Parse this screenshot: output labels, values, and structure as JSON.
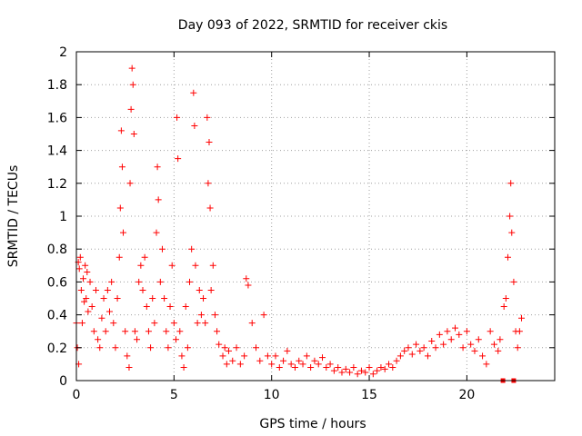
{
  "chart_data": {
    "type": "scatter",
    "title": "Day 093 of 2022, SRMTID for receiver ckis",
    "xlabel": "GPS time / hours",
    "ylabel": "SRMTID / TECUs",
    "xlim": [
      0,
      24.5
    ],
    "ylim": [
      0,
      2
    ],
    "xticks": [
      0,
      5,
      10,
      15,
      20
    ],
    "xtick_labels": [
      "0",
      "5",
      "10",
      "15",
      "20"
    ],
    "yticks": [
      0,
      0.2,
      0.4,
      0.6,
      0.8,
      1,
      1.2,
      1.4,
      1.6,
      1.8,
      2
    ],
    "ytick_labels": [
      "0",
      "0.2",
      "0.4",
      "0.6",
      "0.8",
      "1",
      "1.2",
      "1.4",
      "1.6",
      "1.8",
      "2"
    ],
    "grid": true,
    "marker": "plus",
    "color": "#ff0000",
    "series": [
      {
        "name": "SRMTID",
        "points": [
          [
            0.0,
            0.35
          ],
          [
            0.05,
            0.2
          ],
          [
            0.1,
            0.72
          ],
          [
            0.12,
            0.1
          ],
          [
            0.15,
            0.68
          ],
          [
            0.2,
            0.75
          ],
          [
            0.25,
            0.55
          ],
          [
            0.3,
            0.35
          ],
          [
            0.35,
            0.62
          ],
          [
            0.4,
            0.48
          ],
          [
            0.45,
            0.7
          ],
          [
            0.5,
            0.5
          ],
          [
            0.55,
            0.66
          ],
          [
            0.6,
            0.42
          ],
          [
            0.7,
            0.6
          ],
          [
            0.8,
            0.45
          ],
          [
            0.9,
            0.3
          ],
          [
            1.0,
            0.55
          ],
          [
            1.1,
            0.25
          ],
          [
            1.2,
            0.2
          ],
          [
            1.3,
            0.38
          ],
          [
            1.4,
            0.5
          ],
          [
            1.5,
            0.3
          ],
          [
            1.6,
            0.55
          ],
          [
            1.7,
            0.42
          ],
          [
            1.8,
            0.6
          ],
          [
            1.9,
            0.35
          ],
          [
            2.0,
            0.2
          ],
          [
            2.1,
            0.5
          ],
          [
            2.2,
            0.75
          ],
          [
            2.25,
            1.05
          ],
          [
            2.3,
            1.52
          ],
          [
            2.35,
            1.3
          ],
          [
            2.4,
            0.9
          ],
          [
            2.5,
            0.3
          ],
          [
            2.6,
            0.15
          ],
          [
            2.7,
            0.08
          ],
          [
            2.75,
            1.2
          ],
          [
            2.8,
            1.65
          ],
          [
            2.85,
            1.9
          ],
          [
            2.9,
            1.8
          ],
          [
            2.95,
            1.5
          ],
          [
            3.0,
            0.3
          ],
          [
            3.1,
            0.25
          ],
          [
            3.2,
            0.6
          ],
          [
            3.3,
            0.7
          ],
          [
            3.4,
            0.55
          ],
          [
            3.5,
            0.75
          ],
          [
            3.6,
            0.45
          ],
          [
            3.7,
            0.3
          ],
          [
            3.8,
            0.2
          ],
          [
            3.9,
            0.5
          ],
          [
            4.0,
            0.35
          ],
          [
            4.1,
            0.9
          ],
          [
            4.15,
            1.3
          ],
          [
            4.2,
            1.1
          ],
          [
            4.3,
            0.6
          ],
          [
            4.4,
            0.8
          ],
          [
            4.5,
            0.5
          ],
          [
            4.6,
            0.3
          ],
          [
            4.7,
            0.2
          ],
          [
            4.8,
            0.45
          ],
          [
            4.9,
            0.7
          ],
          [
            5.0,
            0.35
          ],
          [
            5.1,
            0.25
          ],
          [
            5.15,
            1.6
          ],
          [
            5.2,
            1.35
          ],
          [
            5.3,
            0.3
          ],
          [
            5.4,
            0.15
          ],
          [
            5.5,
            0.08
          ],
          [
            5.6,
            0.45
          ],
          [
            5.7,
            0.2
          ],
          [
            5.8,
            0.6
          ],
          [
            5.9,
            0.8
          ],
          [
            6.0,
            1.75
          ],
          [
            6.05,
            1.55
          ],
          [
            6.1,
            0.7
          ],
          [
            6.2,
            0.35
          ],
          [
            6.3,
            0.55
          ],
          [
            6.4,
            0.4
          ],
          [
            6.5,
            0.5
          ],
          [
            6.6,
            0.35
          ],
          [
            6.7,
            1.6
          ],
          [
            6.75,
            1.2
          ],
          [
            6.8,
            1.45
          ],
          [
            6.85,
            1.05
          ],
          [
            6.9,
            0.55
          ],
          [
            7.0,
            0.7
          ],
          [
            7.1,
            0.4
          ],
          [
            7.2,
            0.3
          ],
          [
            7.3,
            0.22
          ],
          [
            7.5,
            0.15
          ],
          [
            7.6,
            0.2
          ],
          [
            7.7,
            0.1
          ],
          [
            7.8,
            0.18
          ],
          [
            8.0,
            0.12
          ],
          [
            8.2,
            0.2
          ],
          [
            8.4,
            0.1
          ],
          [
            8.6,
            0.15
          ],
          [
            8.7,
            0.62
          ],
          [
            8.8,
            0.58
          ],
          [
            9.0,
            0.35
          ],
          [
            9.2,
            0.2
          ],
          [
            9.4,
            0.12
          ],
          [
            9.6,
            0.4
          ],
          [
            9.8,
            0.15
          ],
          [
            10.0,
            0.1
          ],
          [
            10.2,
            0.15
          ],
          [
            10.4,
            0.08
          ],
          [
            10.6,
            0.12
          ],
          [
            10.8,
            0.18
          ],
          [
            11.0,
            0.1
          ],
          [
            11.2,
            0.08
          ],
          [
            11.4,
            0.12
          ],
          [
            11.6,
            0.1
          ],
          [
            11.8,
            0.15
          ],
          [
            12.0,
            0.08
          ],
          [
            12.2,
            0.12
          ],
          [
            12.4,
            0.1
          ],
          [
            12.6,
            0.14
          ],
          [
            12.8,
            0.08
          ],
          [
            13.0,
            0.1
          ],
          [
            13.2,
            0.06
          ],
          [
            13.4,
            0.08
          ],
          [
            13.6,
            0.05
          ],
          [
            13.8,
            0.07
          ],
          [
            14.0,
            0.05
          ],
          [
            14.2,
            0.08
          ],
          [
            14.4,
            0.04
          ],
          [
            14.6,
            0.06
          ],
          [
            14.8,
            0.05
          ],
          [
            15.0,
            0.08
          ],
          [
            15.2,
            0.04
          ],
          [
            15.4,
            0.06
          ],
          [
            15.6,
            0.08
          ],
          [
            15.8,
            0.07
          ],
          [
            16.0,
            0.1
          ],
          [
            16.2,
            0.08
          ],
          [
            16.4,
            0.12
          ],
          [
            16.6,
            0.15
          ],
          [
            16.8,
            0.18
          ],
          [
            17.0,
            0.2
          ],
          [
            17.2,
            0.16
          ],
          [
            17.4,
            0.22
          ],
          [
            17.6,
            0.18
          ],
          [
            17.8,
            0.2
          ],
          [
            18.0,
            0.15
          ],
          [
            18.2,
            0.24
          ],
          [
            18.4,
            0.2
          ],
          [
            18.6,
            0.28
          ],
          [
            18.8,
            0.22
          ],
          [
            19.0,
            0.3
          ],
          [
            19.2,
            0.25
          ],
          [
            19.4,
            0.32
          ],
          [
            19.6,
            0.28
          ],
          [
            19.8,
            0.2
          ],
          [
            20.0,
            0.3
          ],
          [
            20.2,
            0.22
          ],
          [
            20.4,
            0.18
          ],
          [
            20.6,
            0.25
          ],
          [
            20.8,
            0.15
          ],
          [
            21.0,
            0.1
          ],
          [
            21.2,
            0.3
          ],
          [
            21.4,
            0.22
          ],
          [
            21.6,
            0.18
          ],
          [
            21.7,
            0.25
          ],
          [
            21.9,
            0.45
          ],
          [
            22.0,
            0.5
          ],
          [
            22.1,
            0.75
          ],
          [
            22.2,
            1.0
          ],
          [
            22.25,
            1.2
          ],
          [
            22.3,
            0.9
          ],
          [
            22.4,
            0.6
          ],
          [
            22.5,
            0.3
          ],
          [
            22.6,
            0.2
          ],
          [
            22.7,
            0.3
          ],
          [
            22.8,
            0.38
          ]
        ]
      }
    ],
    "squares": [
      [
        21.85,
        0.0
      ],
      [
        22.4,
        0.0
      ]
    ]
  }
}
